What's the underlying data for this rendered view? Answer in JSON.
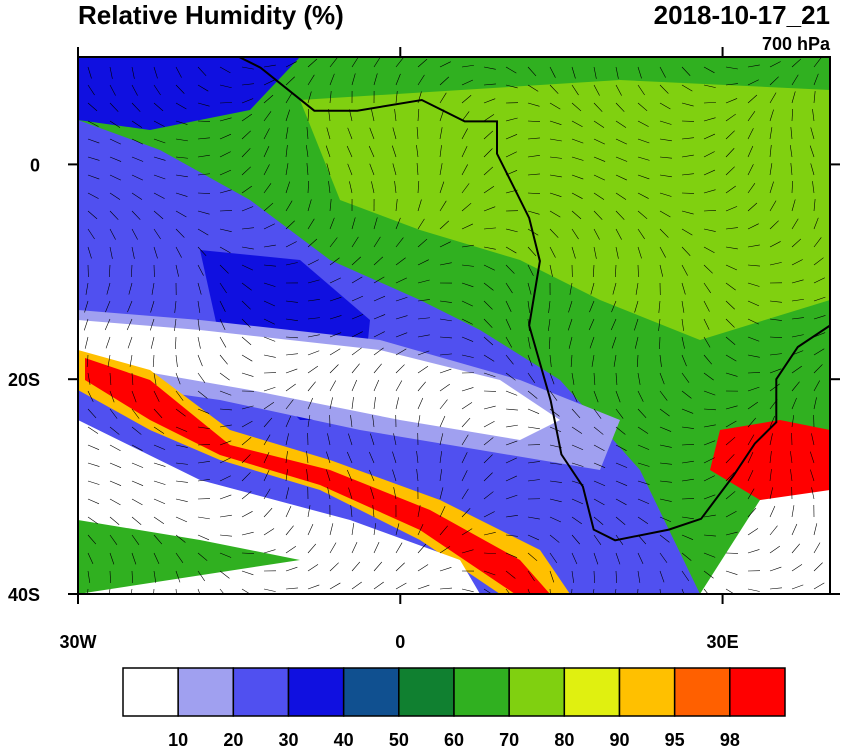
{
  "header": {
    "title": "Relative Humidity (%)",
    "valid_time": "2018-10-17_21",
    "level": "700 hPa"
  },
  "map": {
    "xlim": [
      -30,
      40
    ],
    "ylim": [
      -40,
      10
    ],
    "xticks": [
      {
        "value": -30,
        "label": "30W"
      },
      0,
      {
        "value": 30,
        "label": "30E"
      }
    ],
    "yticks": [
      0,
      {
        "value": -20,
        "label": "20S"
      },
      {
        "value": -40,
        "label": "40S"
      }
    ]
  },
  "colorbar": {
    "colors": [
      "#ffffff",
      "#a0a0f0",
      "#5050f0",
      "#1010e0",
      "#105090",
      "#108030",
      "#30b020",
      "#80d010",
      "#e0f010",
      "#ffc000",
      "#ff6000",
      "#ff0000"
    ],
    "labels": [
      10,
      20,
      30,
      40,
      50,
      60,
      70,
      80,
      90,
      95,
      98
    ]
  }
}
